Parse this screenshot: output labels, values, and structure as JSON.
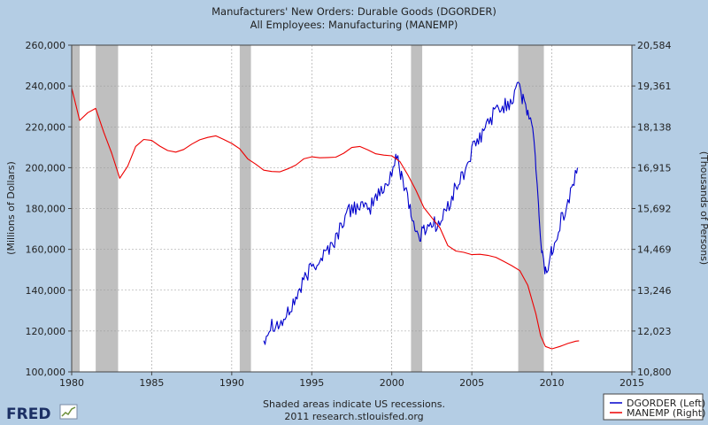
{
  "chart_data": {
    "type": "line",
    "title": "Manufacturers' New Orders: Durable Goods (DGORDER)",
    "subtitle": "All Employees: Manufacturing (MANEMP)",
    "ylabel_left": "(Millions of Dollars)",
    "ylabel_right": "(Thousands of Persons)",
    "xlim": [
      1980,
      2015
    ],
    "ylim_left": [
      100000,
      260000
    ],
    "ylim_right": [
      10800,
      20584
    ],
    "x_ticks": [
      "1980",
      "1985",
      "1990",
      "1995",
      "2000",
      "2005",
      "2010",
      "2015"
    ],
    "y_ticks_left": [
      "100,000",
      "120,000",
      "140,000",
      "160,000",
      "180,000",
      "200,000",
      "220,000",
      "240,000",
      "260,000"
    ],
    "y_ticks_right": [
      "10,800",
      "12,023",
      "13,246",
      "14,469",
      "15,692",
      "16,915",
      "18,138",
      "19,361",
      "20,584"
    ],
    "recessions": [
      [
        1980.0,
        1980.5
      ],
      [
        1981.5,
        1982.9
      ],
      [
        1990.5,
        1991.2
      ],
      [
        2001.2,
        2001.9
      ],
      [
        2007.9,
        2009.5
      ]
    ],
    "series": [
      {
        "name": "DGORDER (Left)",
        "color": "#0000cc",
        "axis": "left",
        "x": [
          1992.0,
          1992.5,
          1993.0,
          1993.5,
          1994.0,
          1994.5,
          1995.0,
          1995.5,
          1996.0,
          1996.5,
          1997.0,
          1997.5,
          1998.0,
          1998.5,
          1999.0,
          1999.5,
          2000.0,
          2000.3,
          2000.6,
          2000.9,
          2001.2,
          2001.5,
          2001.8,
          2002.0,
          2002.5,
          2003.0,
          2003.5,
          2004.0,
          2004.5,
          2005.0,
          2005.5,
          2006.0,
          2006.5,
          2007.0,
          2007.5,
          2007.9,
          2008.2,
          2008.5,
          2008.8,
          2009.0,
          2009.2,
          2009.4,
          2009.6,
          2009.8,
          2010.0,
          2010.5,
          2011.0,
          2011.3,
          2011.6
        ],
        "values": [
          116000,
          124000,
          123000,
          128000,
          136000,
          144000,
          152000,
          155000,
          160000,
          165000,
          175000,
          180000,
          182000,
          178000,
          186000,
          189000,
          198000,
          205000,
          196000,
          190000,
          178000,
          168000,
          166000,
          170000,
          173000,
          172000,
          181000,
          190000,
          197000,
          208000,
          214000,
          222000,
          228000,
          230000,
          233000,
          244000,
          232000,
          227000,
          220000,
          200000,
          175000,
          158000,
          149000,
          152000,
          160000,
          173000,
          182000,
          192000,
          200000
        ]
      },
      {
        "name": "MANEMP (Right)",
        "color": "#ee0000",
        "axis": "right",
        "x": [
          1980.0,
          1980.5,
          1981.0,
          1981.5,
          1982.0,
          1982.5,
          1983.0,
          1983.5,
          1984.0,
          1984.5,
          1985.0,
          1985.5,
          1986.0,
          1986.5,
          1987.0,
          1987.5,
          1988.0,
          1988.5,
          1989.0,
          1989.5,
          1990.0,
          1990.5,
          1991.0,
          1991.5,
          1992.0,
          1992.5,
          1993.0,
          1993.5,
          1994.0,
          1994.5,
          1995.0,
          1995.5,
          1996.0,
          1996.5,
          1997.0,
          1997.5,
          1998.0,
          1998.5,
          1999.0,
          1999.5,
          2000.0,
          2000.5,
          2001.0,
          2001.5,
          2002.0,
          2002.5,
          2003.0,
          2003.5,
          2004.0,
          2004.5,
          2005.0,
          2005.5,
          2006.0,
          2006.5,
          2007.0,
          2007.5,
          2008.0,
          2008.5,
          2009.0,
          2009.3,
          2009.6,
          2010.0,
          2010.5,
          2011.0,
          2011.5,
          2011.7
        ],
        "values": [
          19300,
          18330,
          18560,
          18690,
          17980,
          17350,
          16600,
          16960,
          17550,
          17760,
          17730,
          17560,
          17430,
          17380,
          17460,
          17620,
          17750,
          17820,
          17870,
          17760,
          17640,
          17480,
          17180,
          17020,
          16840,
          16800,
          16790,
          16880,
          16990,
          17180,
          17240,
          17210,
          17220,
          17230,
          17350,
          17520,
          17550,
          17450,
          17330,
          17290,
          17270,
          17100,
          16700,
          16250,
          15720,
          15420,
          15120,
          14580,
          14420,
          14380,
          14310,
          14320,
          14290,
          14230,
          14110,
          13980,
          13830,
          13390,
          12540,
          11880,
          11560,
          11490,
          11560,
          11650,
          11720,
          11730
        ]
      }
    ]
  },
  "footer": {
    "note_line1": "Shaded areas indicate US recessions.",
    "note_line2": "2011 research.stlouisfed.org",
    "logo_text": "FRED"
  }
}
